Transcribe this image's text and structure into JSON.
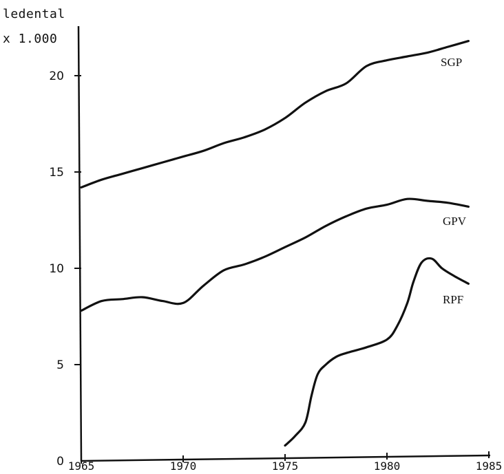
{
  "chart_data": {
    "type": "line",
    "ylabel_lines": [
      "ledental",
      "x 1.000"
    ],
    "xlabel": "",
    "xlim": [
      1965,
      1985
    ],
    "ylim": [
      0,
      22
    ],
    "x_ticks": [
      1965,
      1970,
      1975,
      1980,
      1985
    ],
    "y_ticks": [
      0,
      5,
      10,
      15,
      20
    ],
    "grid": false,
    "legend": "labels next to lines",
    "series": [
      {
        "name": "SGP",
        "x": [
          1965,
          1966,
          1967,
          1968,
          1969,
          1970,
          1971,
          1972,
          1973,
          1974,
          1975,
          1976,
          1977,
          1978,
          1979,
          1980,
          1981,
          1982,
          1983,
          1984
        ],
        "values": [
          14.2,
          14.6,
          14.9,
          15.2,
          15.5,
          15.8,
          16.1,
          16.5,
          16.8,
          17.2,
          17.8,
          18.6,
          19.2,
          19.6,
          20.5,
          20.8,
          21.0,
          21.2,
          21.5,
          21.8
        ]
      },
      {
        "name": "GPV",
        "x": [
          1965,
          1966,
          1967,
          1968,
          1969,
          1970,
          1971,
          1972,
          1973,
          1974,
          1975,
          1976,
          1977,
          1978,
          1979,
          1980,
          1981,
          1982,
          1983,
          1984
        ],
        "values": [
          7.8,
          8.3,
          8.4,
          8.5,
          8.3,
          8.2,
          9.1,
          9.9,
          10.2,
          10.6,
          11.1,
          11.6,
          12.2,
          12.7,
          13.1,
          13.3,
          13.6,
          13.5,
          13.4,
          13.2
        ]
      },
      {
        "name": "RPF",
        "x": [
          1975,
          1975.5,
          1976,
          1976.3,
          1976.6,
          1977,
          1977.5,
          1978,
          1979,
          1980,
          1980.5,
          1981,
          1981.3,
          1981.7,
          1982.2,
          1982.7,
          1983.3,
          1984
        ],
        "values": [
          0.8,
          1.3,
          2.0,
          3.4,
          4.5,
          5.0,
          5.4,
          5.6,
          5.9,
          6.3,
          7.0,
          8.2,
          9.3,
          10.3,
          10.5,
          10.0,
          9.6,
          9.2
        ]
      }
    ]
  }
}
